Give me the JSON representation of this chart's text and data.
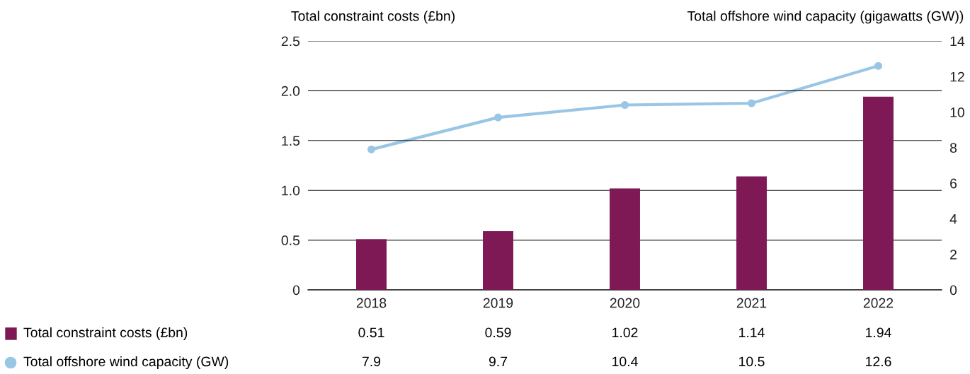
{
  "chart_data": {
    "type": "bar",
    "categories": [
      "2018",
      "2019",
      "2020",
      "2021",
      "2022"
    ],
    "ylabel": "Total constraint costs (£bn)",
    "y2label": "Total offshore wind capacity (gigawatts (GW))",
    "series": [
      {
        "name": "Total constraint costs (£bn)",
        "color": "#7e1955",
        "values": [
          0.51,
          0.59,
          1.02,
          1.14,
          1.94
        ]
      },
      {
        "name": "Total offshore wind capacity (GW)",
        "type": "line",
        "axis": "y2",
        "color": "#9ac6e6",
        "marker": "circle",
        "values": [
          7.9,
          9.7,
          10.4,
          10.5,
          12.6
        ]
      }
    ],
    "ylim": [
      0,
      2.5
    ],
    "yticks": [
      0,
      0.5,
      {
        "value": 1,
        "label": "1.0"
      },
      1.5,
      {
        "value": 2,
        "label": "2.0"
      },
      2.5
    ],
    "y2lim": [
      0,
      14
    ],
    "y2ticks": [
      0,
      2,
      4,
      6,
      8,
      10,
      12,
      14
    ],
    "grid": "y",
    "legend": "bottom",
    "data_labels": true
  }
}
